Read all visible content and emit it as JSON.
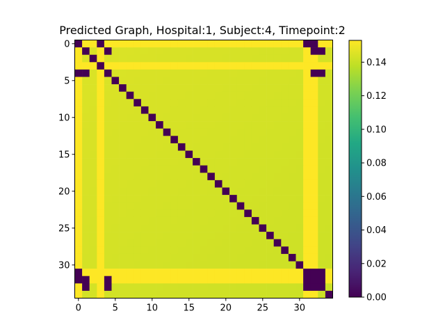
{
  "chart_data": {
    "type": "heatmap",
    "title": "Predicted Graph, Hospital:1, Subject:4, Timepoint:2",
    "size": 35,
    "colormap": "viridis",
    "color_range": [
      0.0,
      0.153
    ],
    "base_value": 0.145,
    "x_ticks": [
      0,
      5,
      10,
      15,
      20,
      25,
      30
    ],
    "y_ticks": [
      0,
      5,
      10,
      15,
      20,
      25,
      30
    ],
    "colorbar_ticks": [
      "0.00",
      "0.02",
      "0.04",
      "0.06",
      "0.08",
      "0.10",
      "0.12",
      "0.14"
    ],
    "colorbar_tick_values": [
      0.0,
      0.02,
      0.04,
      0.06,
      0.08,
      0.1,
      0.12,
      0.14
    ],
    "zero_cells": [
      [
        0,
        0
      ],
      [
        0,
        3
      ],
      [
        0,
        31
      ],
      [
        0,
        32
      ],
      [
        1,
        1
      ],
      [
        1,
        4
      ],
      [
        1,
        32
      ],
      [
        1,
        33
      ],
      [
        2,
        2
      ],
      [
        3,
        3
      ],
      [
        4,
        0
      ],
      [
        4,
        1
      ],
      [
        4,
        4
      ],
      [
        4,
        32
      ],
      [
        4,
        33
      ],
      [
        5,
        5
      ],
      [
        6,
        6
      ],
      [
        7,
        7
      ],
      [
        8,
        8
      ],
      [
        9,
        9
      ],
      [
        10,
        10
      ],
      [
        11,
        11
      ],
      [
        12,
        12
      ],
      [
        13,
        13
      ],
      [
        14,
        14
      ],
      [
        15,
        15
      ],
      [
        16,
        16
      ],
      [
        17,
        17
      ],
      [
        18,
        18
      ],
      [
        19,
        19
      ],
      [
        20,
        20
      ],
      [
        21,
        21
      ],
      [
        22,
        22
      ],
      [
        23,
        23
      ],
      [
        24,
        24
      ],
      [
        25,
        25
      ],
      [
        26,
        26
      ],
      [
        27,
        27
      ],
      [
        28,
        28
      ],
      [
        29,
        29
      ],
      [
        30,
        30
      ],
      [
        31,
        0
      ],
      [
        31,
        31
      ],
      [
        31,
        32
      ],
      [
        31,
        33
      ],
      [
        32,
        0
      ],
      [
        32,
        1
      ],
      [
        32,
        4
      ],
      [
        32,
        31
      ],
      [
        32,
        32
      ],
      [
        32,
        33
      ],
      [
        33,
        1
      ],
      [
        33,
        4
      ],
      [
        33,
        31
      ],
      [
        33,
        32
      ],
      [
        33,
        33
      ],
      [
        34,
        34
      ]
    ],
    "highlight_rows": [
      0,
      3,
      31,
      32
    ],
    "highlight_cols": [
      0,
      3,
      31,
      32
    ],
    "highlight_value": 0.153
  }
}
